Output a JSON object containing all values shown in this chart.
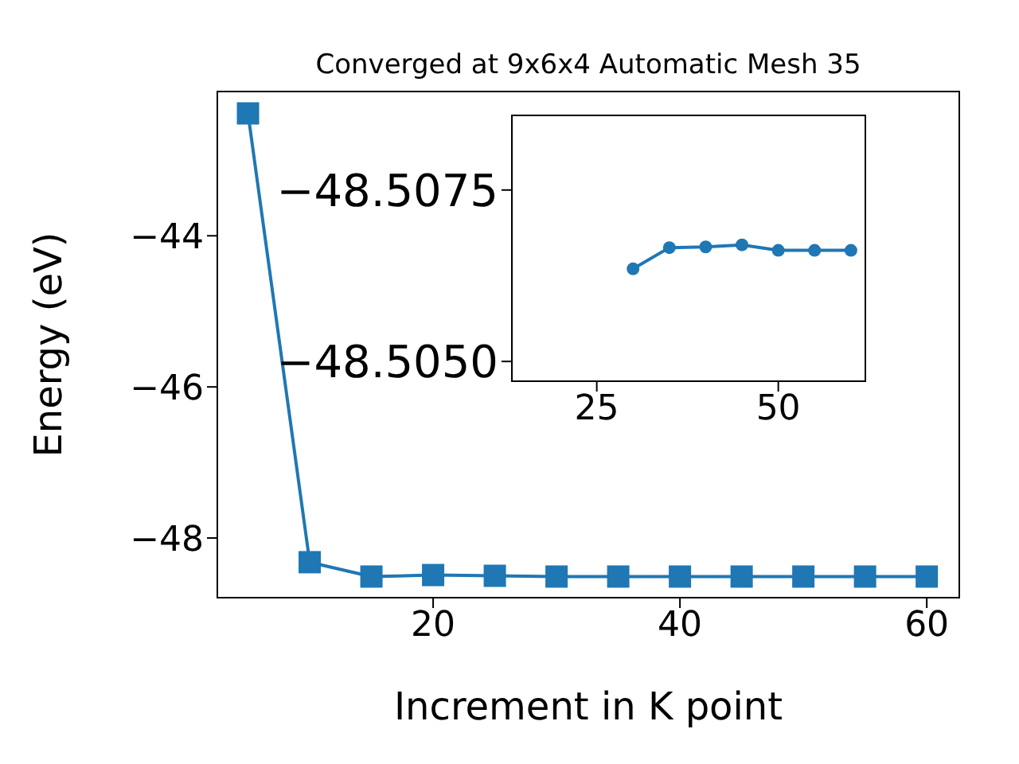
{
  "chart_data": [
    {
      "type": "line",
      "title": "Converged at 9x6x4 Automatic Mesh 35",
      "xlabel": "Increment in K point",
      "ylabel": "Energy (eV)",
      "x": [
        5,
        10,
        15,
        20,
        25,
        30,
        35,
        40,
        45,
        50,
        55,
        60
      ],
      "series": [
        {
          "color": "#1f77b4",
          "values": [
            -42.38,
            -48.32,
            -48.51,
            -48.49,
            -48.5,
            -48.51,
            -48.51,
            -48.51,
            -48.51,
            -48.51,
            -48.51,
            -48.51
          ]
        }
      ],
      "xlim": [
        2.45,
        62.7
      ],
      "ylim": [
        -48.8,
        -42.08
      ],
      "xticks": [
        20,
        40,
        60
      ],
      "yticks": [
        -44,
        -46,
        -48
      ],
      "marker": "square",
      "grid": false,
      "legend": false
    },
    {
      "type": "line",
      "x": [
        30,
        35,
        40,
        45,
        50,
        55,
        60
      ],
      "series": [
        {
          "color": "#1f77b4",
          "values": [
            -48.50635,
            -48.50666,
            -48.50667,
            -48.5067,
            -48.50662,
            -48.50662,
            -48.50662
          ]
        }
      ],
      "xlim": [
        13.2,
        62.1
      ],
      "ylim": [
        -48.5047,
        -48.5086
      ],
      "xticks": [
        25,
        50
      ],
      "yticks": [
        -48.5075,
        {
          "value": -48.505,
          "label": "−48.5050"
        }
      ],
      "marker": "circle",
      "grid": false,
      "legend": false
    }
  ]
}
